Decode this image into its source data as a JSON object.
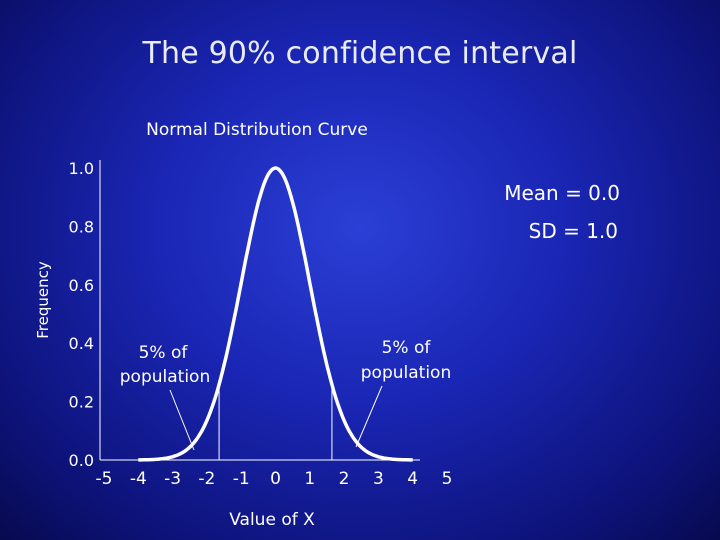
{
  "slide": {
    "title": "The 90% confidence interval"
  },
  "chart_data": {
    "type": "line",
    "title": "Normal Distribution Curve",
    "xlabel": "Value of X",
    "ylabel": "Frequency",
    "xlim": [
      -5,
      5
    ],
    "ylim": [
      0,
      1.0
    ],
    "xticks": [
      "-5",
      "-4",
      "-3",
      "-2",
      "-1",
      "0",
      "1",
      "2",
      "3",
      "4",
      "5"
    ],
    "yticks": [
      "0.0",
      "0.2",
      "0.4",
      "0.6",
      "0.8",
      "1.0"
    ],
    "mean": 0.0,
    "sd": 1.0,
    "curve": "normal density scaled to peak 1.0",
    "x": [
      -4,
      -3.5,
      -3,
      -2.5,
      -2,
      -1.645,
      -1.5,
      -1,
      -0.5,
      0,
      0.5,
      1,
      1.5,
      1.645,
      2,
      2.5,
      3,
      3.5,
      4
    ],
    "y": [
      0.0003,
      0.002,
      0.011,
      0.044,
      0.135,
      0.258,
      0.325,
      0.607,
      0.882,
      1.0,
      0.882,
      0.607,
      0.325,
      0.258,
      0.135,
      0.044,
      0.011,
      0.002,
      0.0003
    ],
    "interval_bounds": [
      -1.645,
      1.645
    ],
    "annotations": {
      "stats_line1": "Mean = 0.0",
      "stats_line2": "SD = 1.0",
      "left_tail_line1": "5% of",
      "left_tail_line2": "population",
      "right_tail_line1": "5% of",
      "right_tail_line2": "population"
    },
    "colors": {
      "curve": "#ffffff",
      "axes": "#ffffff",
      "background": "#1a26b4"
    }
  }
}
